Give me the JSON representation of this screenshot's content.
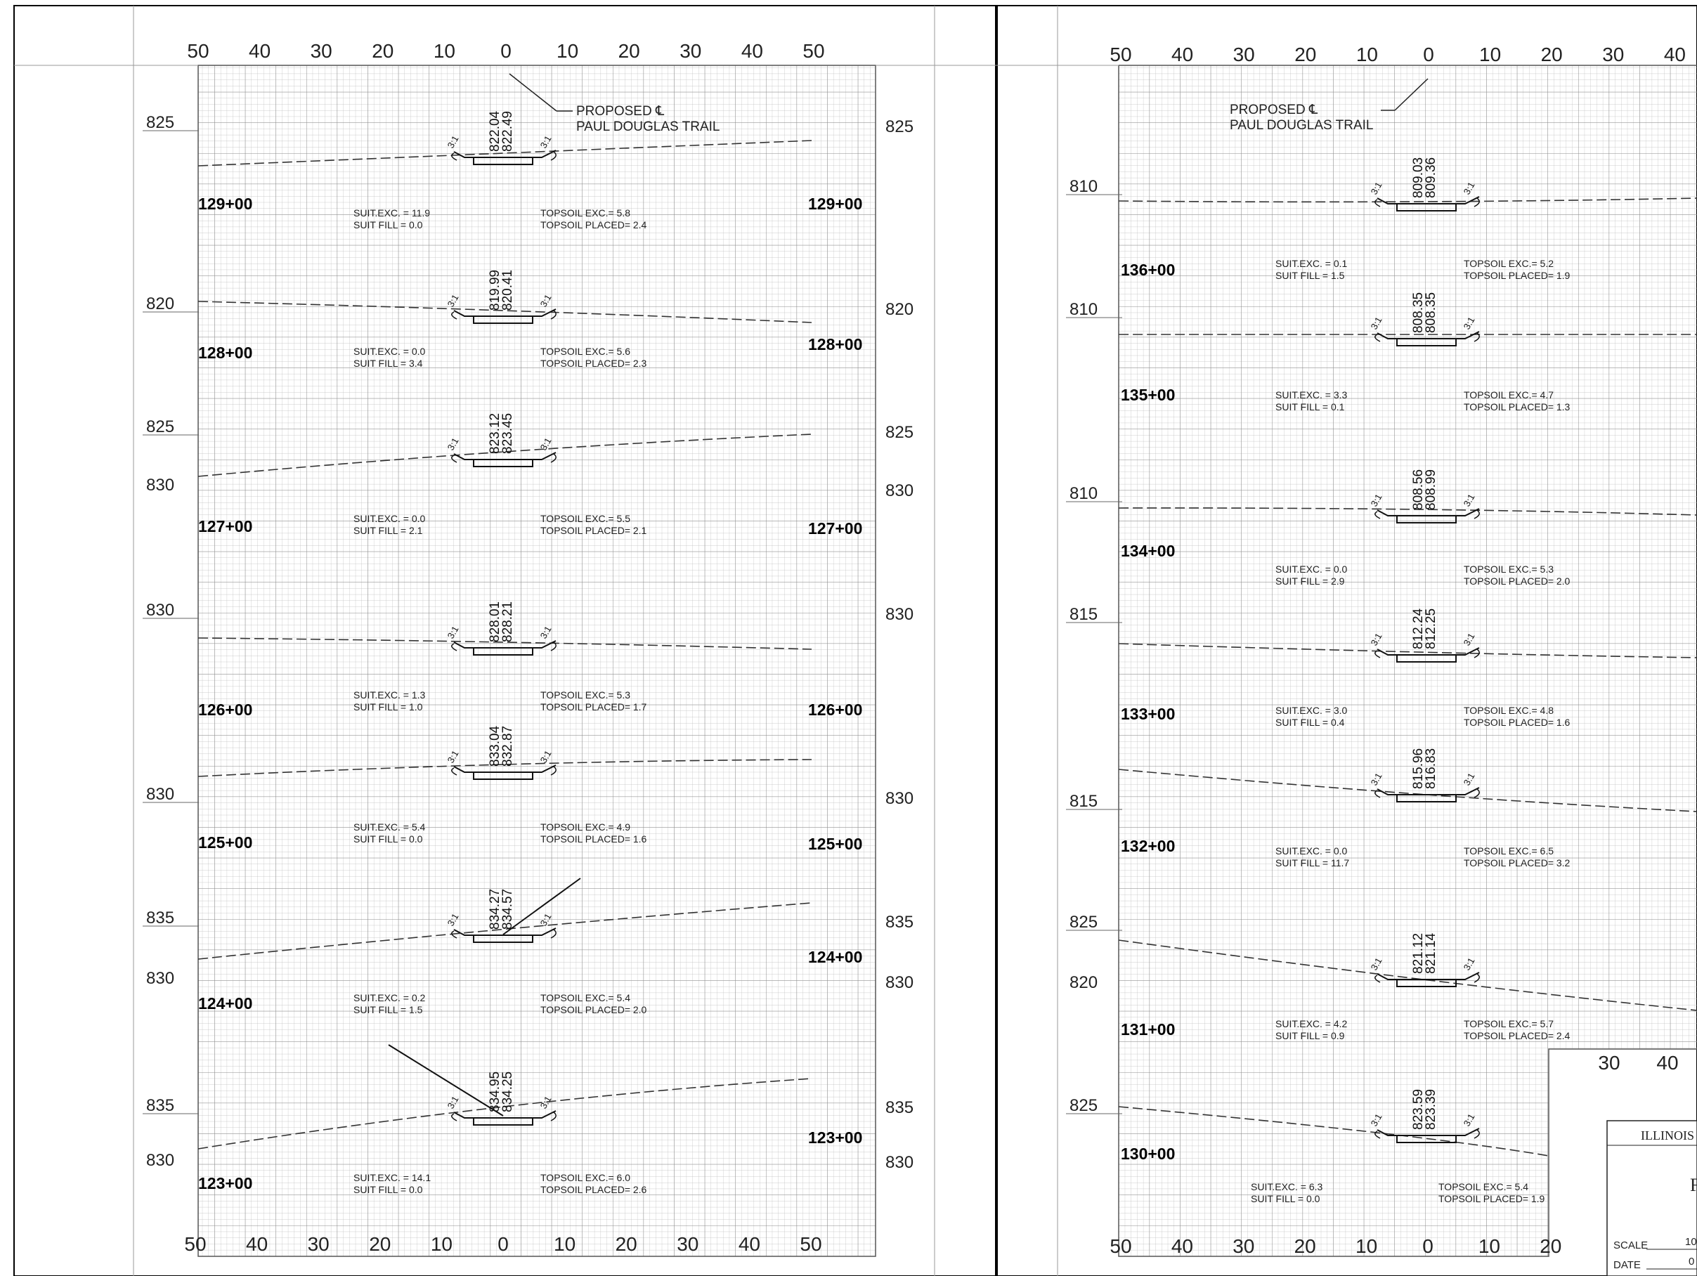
{
  "sheet": {
    "left_panel": {
      "top_offsets": [
        "50",
        "40",
        "30",
        "20",
        "10",
        "0",
        "10",
        "20",
        "30",
        "40",
        "50"
      ],
      "bottom_offsets": [
        "50",
        "40",
        "30",
        "20",
        "10",
        "0",
        "10",
        "20",
        "30",
        "40",
        "50"
      ],
      "annotation": [
        "PROPOSED ℄",
        "PAUL DOUGLAS TRAIL"
      ],
      "sections": [
        {
          "station": "129+00",
          "elev_left": "825",
          "elev_right": "825",
          "label_top": "822.04",
          "label_bottom": "822.49",
          "suit_exc": "SUIT.EXC. = 11.9",
          "suit_fill": "SUIT FILL = 0.0",
          "topsoil_exc": "TOPSOIL EXC.= 5.8",
          "topsoil_placed": "TOPSOIL PLACED= 2.4"
        },
        {
          "station": "128+00",
          "elev_left": "820",
          "elev_right": "820",
          "label_top": "819.99",
          "label_bottom": "820.41",
          "suit_exc": "SUIT.EXC. = 0.0",
          "suit_fill": "SUIT FILL = 3.4",
          "topsoil_exc": "TOPSOIL EXC.= 5.6",
          "topsoil_placed": "TOPSOIL PLACED= 2.3"
        },
        {
          "station": "127+00",
          "elev_left": "825",
          "elev_left2": "830",
          "elev_right": "825",
          "elev_right2": "830",
          "label_top": "823.12",
          "label_bottom": "823.45",
          "suit_exc": "SUIT.EXC. = 0.0",
          "suit_fill": "SUIT FILL = 2.1",
          "topsoil_exc": "TOPSOIL EXC.= 5.5",
          "topsoil_placed": "TOPSOIL PLACED= 2.1"
        },
        {
          "station": "126+00",
          "elev_left": "830",
          "elev_right": "830",
          "label_top": "828.01",
          "label_bottom": "828.21",
          "suit_exc": "SUIT.EXC. = 1.3",
          "suit_fill": "SUIT FILL = 1.0",
          "topsoil_exc": "TOPSOIL EXC.= 5.3",
          "topsoil_placed": "TOPSOIL PLACED= 1.7"
        },
        {
          "station": "125+00",
          "elev_left": "830",
          "elev_right": "830",
          "label_top": "833.04",
          "label_bottom": "832.87",
          "suit_exc": "SUIT.EXC. = 5.4",
          "suit_fill": "SUIT FILL = 0.0",
          "topsoil_exc": "TOPSOIL EXC.= 4.9",
          "topsoil_placed": "TOPSOIL PLACED= 1.6"
        },
        {
          "station": "124+00",
          "elev_left": "835",
          "elev_left2": "830",
          "elev_right": "835",
          "elev_right2": "830",
          "label_top": "834.27",
          "label_bottom": "834.57",
          "suit_exc": "SUIT.EXC. = 0.2",
          "suit_fill": "SUIT FILL = 1.5",
          "topsoil_exc": "TOPSOIL EXC.= 5.4",
          "topsoil_placed": "TOPSOIL PLACED= 2.0"
        },
        {
          "station": "123+00",
          "elev_left": "835",
          "elev_left2": "830",
          "elev_right": "835",
          "elev_right2": "830",
          "label_top": "834.95",
          "label_bottom": "834.25",
          "suit_exc": "SUIT.EXC. = 14.1",
          "suit_fill": "SUIT FILL = 0.0",
          "topsoil_exc": "TOPSOIL EXC.= 6.0",
          "topsoil_placed": "TOPSOIL PLACED= 2.6"
        }
      ]
    },
    "right_panel": {
      "top_offsets": [
        "50",
        "40",
        "30",
        "20",
        "10",
        "0",
        "10",
        "20",
        "30",
        "40"
      ],
      "bottom_offsets": [
        "50",
        "40",
        "30",
        "20",
        "10",
        "0",
        "10",
        "20"
      ],
      "mid_offsets": [
        "30",
        "40"
      ],
      "annotation": [
        "PROPOSED ℄",
        "PAUL DOUGLAS TRAIL"
      ],
      "sections": [
        {
          "station": "136+00",
          "elev": "810",
          "label_top": "809.03",
          "label_bottom": "809.36",
          "suit_exc": "SUIT.EXC. = 0.1",
          "suit_fill": "SUIT FILL = 1.5",
          "topsoil_exc": "TOPSOIL EXC.= 5.2",
          "topsoil_placed": "TOPSOIL PLACED= 1.9"
        },
        {
          "station": "135+00",
          "elev": "810",
          "label_top": "808.35",
          "label_bottom": "808.35",
          "suit_exc": "SUIT.EXC. = 3.3",
          "suit_fill": "SUIT FILL = 0.1",
          "topsoil_exc": "TOPSOIL EXC.= 4.7",
          "topsoil_placed": "TOPSOIL PLACED= 1.3"
        },
        {
          "station": "134+00",
          "elev": "810",
          "label_top": "808.56",
          "label_bottom": "808.99",
          "suit_exc": "SUIT.EXC. = 0.0",
          "suit_fill": "SUIT FILL = 2.9",
          "topsoil_exc": "TOPSOIL EXC.= 5.3",
          "topsoil_placed": "TOPSOIL PLACED= 2.0"
        },
        {
          "station": "133+00",
          "elev": "815",
          "label_top": "812.24",
          "label_bottom": "812.25",
          "suit_exc": "SUIT.EXC. = 3.0",
          "suit_fill": "SUIT FILL = 0.4",
          "topsoil_exc": "TOPSOIL EXC.= 4.8",
          "topsoil_placed": "TOPSOIL PLACED= 1.6"
        },
        {
          "station": "132+00",
          "elev": "815",
          "label_top": "815.96",
          "label_bottom": "816.83",
          "suit_exc": "SUIT.EXC. = 0.0",
          "suit_fill": "SUIT FILL = 11.7",
          "topsoil_exc": "TOPSOIL EXC.= 6.5",
          "topsoil_placed": "TOPSOIL PLACED= 3.2"
        },
        {
          "station": "131+00",
          "elev": "825",
          "elev2": "820",
          "label_top": "821.12",
          "label_bottom": "821.14",
          "suit_exc": "SUIT.EXC. = 4.2",
          "suit_fill": "SUIT FILL = 0.9",
          "topsoil_exc": "TOPSOIL EXC.= 5.7",
          "topsoil_placed": "TOPSOIL PLACED= 2.4"
        },
        {
          "station": "130+00",
          "elev": "825",
          "label_top": "823.59",
          "label_bottom": "823.39",
          "suit_exc": "SUIT.EXC. = 6.3",
          "suit_fill": "SUIT FILL = 0.0",
          "topsoil_exc": "TOPSOIL EXC.= 5.4",
          "topsoil_placed": "TOPSOIL PLACED= 1.9"
        }
      ]
    },
    "slope_label": "3:1",
    "title_block": {
      "org": "ILLINOIS",
      "letter": "F",
      "scale_label": "SCALE",
      "scale_value": "10",
      "date_label": "DATE",
      "date_value": "0"
    }
  }
}
